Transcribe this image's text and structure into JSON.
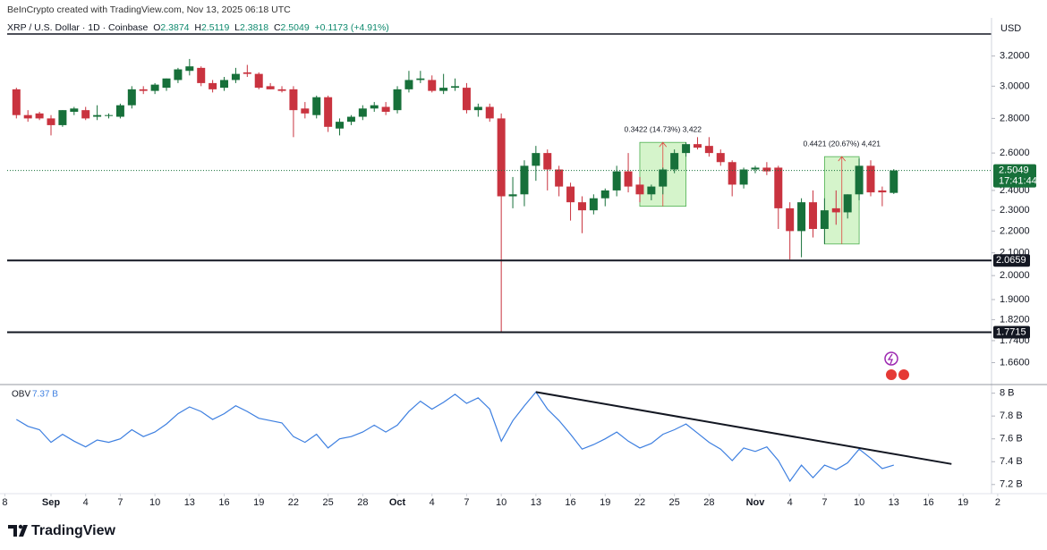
{
  "branding": {
    "watermark": "BeInCrypto created with TradingView.com, Nov 13, 2025 06:18 UTC",
    "logo": "TradingView"
  },
  "chart_data": [
    {
      "type": "candlestick",
      "title": "XRP / U.S. Dollar · 1D · Coinbase",
      "currency": "USD",
      "legend": {
        "labels": [
          "O",
          "H",
          "L",
          "C"
        ],
        "change": "+0.1173 (+4.91%)"
      },
      "up_color": "#17703a",
      "down_color": "#c9333f",
      "x": [
        "2025-08-29",
        "2025-08-30",
        "2025-08-31",
        "2025-09-01",
        "2025-09-02",
        "2025-09-03",
        "2025-09-04",
        "2025-09-05",
        "2025-09-06",
        "2025-09-07",
        "2025-09-08",
        "2025-09-09",
        "2025-09-10",
        "2025-09-11",
        "2025-09-12",
        "2025-09-13",
        "2025-09-14",
        "2025-09-15",
        "2025-09-16",
        "2025-09-17",
        "2025-09-18",
        "2025-09-19",
        "2025-09-20",
        "2025-09-21",
        "2025-09-22",
        "2025-09-23",
        "2025-09-24",
        "2025-09-25",
        "2025-09-26",
        "2025-09-27",
        "2025-09-28",
        "2025-09-29",
        "2025-09-30",
        "2025-10-01",
        "2025-10-02",
        "2025-10-03",
        "2025-10-04",
        "2025-10-05",
        "2025-10-06",
        "2025-10-07",
        "2025-10-08",
        "2025-10-09",
        "2025-10-10",
        "2025-10-11",
        "2025-10-12",
        "2025-10-13",
        "2025-10-14",
        "2025-10-15",
        "2025-10-16",
        "2025-10-17",
        "2025-10-18",
        "2025-10-19",
        "2025-10-20",
        "2025-10-21",
        "2025-10-22",
        "2025-10-23",
        "2025-10-24",
        "2025-10-25",
        "2025-10-26",
        "2025-10-27",
        "2025-10-28",
        "2025-10-29",
        "2025-10-30",
        "2025-10-31",
        "2025-11-01",
        "2025-11-02",
        "2025-11-03",
        "2025-11-04",
        "2025-11-05",
        "2025-11-06",
        "2025-11-07",
        "2025-11-08",
        "2025-11-09",
        "2025-11-10",
        "2025-11-11",
        "2025-11-12",
        "2025-11-13"
      ],
      "open": [
        2.98,
        2.82,
        2.83,
        2.8,
        2.76,
        2.84,
        2.85,
        2.81,
        2.82,
        2.81,
        2.88,
        2.98,
        2.97,
        2.99,
        3.04,
        3.1,
        3.12,
        3.02,
        2.99,
        3.04,
        3.09,
        3.08,
        3.0,
        2.98,
        2.98,
        2.86,
        2.82,
        2.93,
        2.74,
        2.78,
        2.81,
        2.86,
        2.87,
        2.85,
        2.98,
        3.04,
        3.04,
        2.97,
        2.99,
        2.99,
        2.85,
        2.87,
        2.8,
        2.37,
        2.38,
        2.53,
        2.6,
        2.51,
        2.42,
        2.34,
        2.3,
        2.36,
        2.4,
        2.5,
        2.43,
        2.38,
        2.42,
        2.51,
        2.6,
        2.65,
        2.64,
        2.6,
        2.55,
        2.43,
        2.51,
        2.52,
        2.52,
        2.31,
        2.2,
        2.34,
        2.21,
        2.31,
        2.29,
        2.38,
        2.53,
        2.4,
        2.3874
      ],
      "high": [
        2.99,
        2.85,
        2.84,
        2.82,
        2.85,
        2.87,
        2.87,
        2.88,
        2.83,
        2.89,
        3.0,
        3.0,
        3.02,
        3.05,
        3.12,
        3.18,
        3.13,
        3.04,
        3.06,
        3.12,
        3.14,
        3.09,
        3.02,
        3.0,
        3.0,
        2.9,
        2.94,
        2.94,
        2.8,
        2.82,
        2.88,
        2.9,
        2.9,
        3.0,
        3.1,
        3.1,
        3.07,
        3.08,
        3.05,
        3.02,
        2.89,
        2.89,
        2.83,
        2.47,
        2.56,
        2.64,
        2.62,
        2.53,
        2.44,
        2.37,
        2.38,
        2.41,
        2.53,
        2.6,
        2.47,
        2.43,
        2.52,
        2.62,
        2.66,
        2.69,
        2.69,
        2.62,
        2.56,
        2.52,
        2.53,
        2.55,
        2.53,
        2.34,
        2.36,
        2.4,
        2.36,
        2.4,
        2.38,
        2.57,
        2.56,
        2.42,
        2.5119
      ],
      "low": [
        2.8,
        2.78,
        2.79,
        2.7,
        2.75,
        2.82,
        2.79,
        2.79,
        2.8,
        2.8,
        2.86,
        2.95,
        2.95,
        2.97,
        3.02,
        3.07,
        3.0,
        2.96,
        2.97,
        3.02,
        3.06,
        2.98,
        2.98,
        2.96,
        2.69,
        2.8,
        2.8,
        2.72,
        2.7,
        2.76,
        2.79,
        2.84,
        2.82,
        2.83,
        2.96,
        3.02,
        2.96,
        2.95,
        2.97,
        2.83,
        2.81,
        2.78,
        1.77,
        2.31,
        2.32,
        2.45,
        2.4,
        2.37,
        2.25,
        2.19,
        2.28,
        2.32,
        2.37,
        2.39,
        2.34,
        2.35,
        2.38,
        2.49,
        2.58,
        2.62,
        2.58,
        2.53,
        2.37,
        2.41,
        2.49,
        2.48,
        2.21,
        2.07,
        2.08,
        2.17,
        2.14,
        2.23,
        2.26,
        2.35,
        2.37,
        2.32,
        2.3818
      ],
      "close": [
        2.82,
        2.8,
        2.8,
        2.76,
        2.85,
        2.86,
        2.8,
        2.82,
        2.82,
        2.88,
        2.98,
        2.97,
        3.01,
        3.05,
        3.11,
        3.13,
        3.02,
        2.98,
        3.04,
        3.08,
        3.08,
        2.99,
        2.98,
        2.97,
        2.85,
        2.83,
        2.93,
        2.75,
        2.78,
        2.81,
        2.86,
        2.88,
        2.84,
        2.98,
        3.04,
        3.05,
        2.97,
        2.99,
        3.0,
        2.85,
        2.87,
        2.8,
        2.37,
        2.38,
        2.53,
        2.6,
        2.51,
        2.42,
        2.34,
        2.3,
        2.36,
        2.4,
        2.5,
        2.42,
        2.38,
        2.42,
        2.51,
        2.6,
        2.65,
        2.63,
        2.6,
        2.55,
        2.43,
        2.51,
        2.52,
        2.5,
        2.31,
        2.2,
        2.34,
        2.21,
        2.3,
        2.29,
        2.38,
        2.53,
        2.39,
        2.39,
        2.5049
      ],
      "countdown": "17:41:44",
      "levels": [
        {
          "value": 2.0659,
          "label": "2.0659"
        },
        {
          "value": 1.7715,
          "label": "1.7715"
        }
      ],
      "measures": [
        {
          "label": "0.3422 (14.73%) 3,422",
          "start": "2025-10-22",
          "end": "2025-10-26",
          "low": 2.32,
          "high": 2.66
        },
        {
          "label": "0.4421 (20.67%) 4,421",
          "start": "2025-11-07",
          "end": "2025-11-10",
          "low": 2.14,
          "high": 2.58
        }
      ],
      "log_scale": true,
      "xlim": [
        "2025-08-27",
        "2025-11-21"
      ],
      "ylim": [
        1.59,
        3.31
      ],
      "yticks": [
        {
          "value": 3.2,
          "label": "3.2000"
        },
        {
          "value": 3.0,
          "label": "3.0000"
        },
        {
          "value": 2.8,
          "label": "2.8000"
        },
        {
          "value": 2.6,
          "label": "2.6000"
        },
        {
          "value": 2.4,
          "label": "2.4000"
        },
        {
          "value": 2.3,
          "label": "2.3000"
        },
        {
          "value": 2.2,
          "label": "2.2000"
        },
        {
          "value": 2.1,
          "label": "2.1000"
        },
        {
          "value": 2.0,
          "label": "2.0000"
        },
        {
          "value": 1.9,
          "label": "1.9000"
        },
        {
          "value": 1.82,
          "label": "1.8200"
        },
        {
          "value": 1.74,
          "label": "1.7400"
        },
        {
          "value": 1.66,
          "label": "1.6600"
        }
      ],
      "xticks": [
        {
          "value": "2025-08-28",
          "label": "8"
        },
        {
          "value": "2025-09-01",
          "label": "Sep"
        },
        {
          "value": "2025-09-04",
          "label": "4"
        },
        {
          "value": "2025-09-07",
          "label": "7"
        },
        {
          "value": "2025-09-10",
          "label": "10"
        },
        {
          "value": "2025-09-13",
          "label": "13"
        },
        {
          "value": "2025-09-16",
          "label": "16"
        },
        {
          "value": "2025-09-19",
          "label": "19"
        },
        {
          "value": "2025-09-22",
          "label": "22"
        },
        {
          "value": "2025-09-25",
          "label": "25"
        },
        {
          "value": "2025-09-28",
          "label": "28"
        },
        {
          "value": "2025-10-01",
          "label": "Oct"
        },
        {
          "value": "2025-10-04",
          "label": "4"
        },
        {
          "value": "2025-10-07",
          "label": "7"
        },
        {
          "value": "2025-10-10",
          "label": "10"
        },
        {
          "value": "2025-10-13",
          "label": "13"
        },
        {
          "value": "2025-10-16",
          "label": "16"
        },
        {
          "value": "2025-10-19",
          "label": "19"
        },
        {
          "value": "2025-10-22",
          "label": "22"
        },
        {
          "value": "2025-10-25",
          "label": "25"
        },
        {
          "value": "2025-10-28",
          "label": "28"
        },
        {
          "value": "2025-11-01",
          "label": "Nov"
        },
        {
          "value": "2025-11-04",
          "label": "4"
        },
        {
          "value": "2025-11-07",
          "label": "7"
        },
        {
          "value": "2025-11-10",
          "label": "10"
        },
        {
          "value": "2025-11-13",
          "label": "13"
        },
        {
          "value": "2025-11-16",
          "label": "16"
        },
        {
          "value": "2025-11-19",
          "label": "19"
        },
        {
          "value": "2025-11-22",
          "label": "2"
        }
      ]
    },
    {
      "type": "line",
      "legend_value": "7.37 B",
      "x": [
        "2025-08-29",
        "2025-08-30",
        "2025-08-31",
        "2025-09-01",
        "2025-09-02",
        "2025-09-03",
        "2025-09-04",
        "2025-09-05",
        "2025-09-06",
        "2025-09-07",
        "2025-09-08",
        "2025-09-09",
        "2025-09-10",
        "2025-09-11",
        "2025-09-12",
        "2025-09-13",
        "2025-09-14",
        "2025-09-15",
        "2025-09-16",
        "2025-09-17",
        "2025-09-18",
        "2025-09-19",
        "2025-09-20",
        "2025-09-21",
        "2025-09-22",
        "2025-09-23",
        "2025-09-24",
        "2025-09-25",
        "2025-09-26",
        "2025-09-27",
        "2025-09-28",
        "2025-09-29",
        "2025-09-30",
        "2025-10-01",
        "2025-10-02",
        "2025-10-03",
        "2025-10-04",
        "2025-10-05",
        "2025-10-06",
        "2025-10-07",
        "2025-10-08",
        "2025-10-09",
        "2025-10-10",
        "2025-10-11",
        "2025-10-12",
        "2025-10-13",
        "2025-10-14",
        "2025-10-15",
        "2025-10-16",
        "2025-10-17",
        "2025-10-18",
        "2025-10-19",
        "2025-10-20",
        "2025-10-21",
        "2025-10-22",
        "2025-10-23",
        "2025-10-24",
        "2025-10-25",
        "2025-10-26",
        "2025-10-27",
        "2025-10-28",
        "2025-10-29",
        "2025-10-30",
        "2025-10-31",
        "2025-11-01",
        "2025-11-02",
        "2025-11-03",
        "2025-11-04",
        "2025-11-05",
        "2025-11-06",
        "2025-11-07",
        "2025-11-08",
        "2025-11-09",
        "2025-11-10",
        "2025-11-11",
        "2025-11-12",
        "2025-11-13"
      ],
      "series": [
        {
          "name": "OBV",
          "color": "#3d7fe0",
          "values": [
            7.77,
            7.71,
            7.68,
            7.57,
            7.64,
            7.58,
            7.53,
            7.59,
            7.57,
            7.6,
            7.68,
            7.62,
            7.66,
            7.73,
            7.82,
            7.88,
            7.84,
            7.77,
            7.82,
            7.89,
            7.84,
            7.78,
            7.76,
            7.74,
            7.62,
            7.57,
            7.64,
            7.52,
            7.6,
            7.62,
            7.66,
            7.72,
            7.66,
            7.72,
            7.84,
            7.93,
            7.86,
            7.92,
            7.99,
            7.91,
            7.96,
            7.86,
            7.58,
            7.76,
            7.89,
            8.01,
            7.86,
            7.76,
            7.64,
            7.51,
            7.55,
            7.6,
            7.66,
            7.58,
            7.52,
            7.56,
            7.64,
            7.68,
            7.73,
            7.65,
            7.57,
            7.51,
            7.41,
            7.52,
            7.49,
            7.53,
            7.41,
            7.23,
            7.37,
            7.26,
            7.37,
            7.33,
            7.39,
            7.51,
            7.43,
            7.34,
            7.37
          ]
        }
      ],
      "trendline": {
        "x": [
          "2025-10-13",
          "2025-11-18"
        ],
        "y": [
          8.01,
          7.38
        ]
      },
      "xlim": [
        "2025-08-27",
        "2025-11-21"
      ],
      "ylim": [
        7.12,
        8.06
      ],
      "yticks": [
        {
          "value": 8.0,
          "label": "8 B"
        },
        {
          "value": 7.8,
          "label": "7.8 B"
        },
        {
          "value": 7.6,
          "label": "7.6 B"
        },
        {
          "value": 7.4,
          "label": "7.4 B"
        },
        {
          "value": 7.2,
          "label": "7.2 B"
        }
      ]
    }
  ]
}
